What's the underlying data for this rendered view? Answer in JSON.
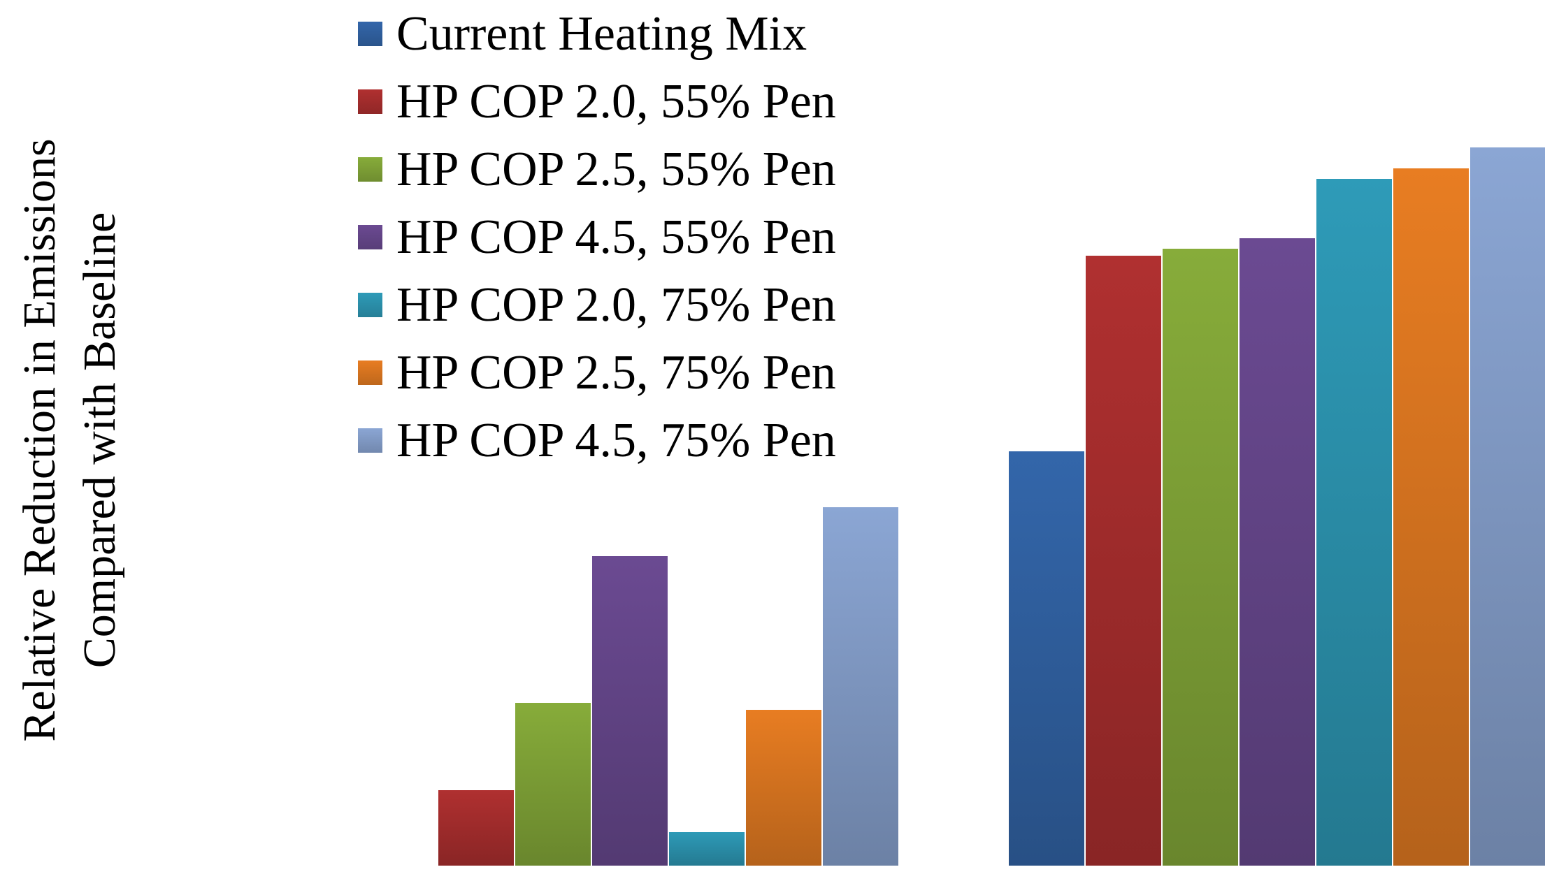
{
  "chart_data": {
    "type": "bar",
    "title": "",
    "xlabel": "",
    "ylabel_lines": [
      "Relative Reduction in Emissions",
      "Compared with Baseline"
    ],
    "ylim": [
      0,
      100
    ],
    "grid": false,
    "legend_position": "top-left",
    "categories": [
      "",
      ""
    ],
    "series": [
      {
        "name": "Current Heating Mix",
        "color": "#3366aa",
        "values": [
          0,
          59.5
        ]
      },
      {
        "name": "HP COP 2.0, 55% Pen",
        "color": "#b03030",
        "values": [
          11,
          87.5
        ]
      },
      {
        "name": "HP COP 2.5, 55% Pen",
        "color": "#87ac3a",
        "values": [
          23.5,
          88.5
        ]
      },
      {
        "name": "HP COP 4.5, 55% Pen",
        "color": "#6b4a92",
        "values": [
          44.5,
          90
        ]
      },
      {
        "name": "HP COP 2.0, 75% Pen",
        "color": "#2e9bb8",
        "values": [
          5,
          98.5
        ]
      },
      {
        "name": "HP COP 2.5, 75% Pen",
        "color": "#e87d22",
        "values": [
          22.5,
          100
        ]
      },
      {
        "name": "HP COP 4.5, 75% Pen",
        "color": "#8ba6d4",
        "values": [
          51.5,
          103
        ]
      }
    ]
  }
}
